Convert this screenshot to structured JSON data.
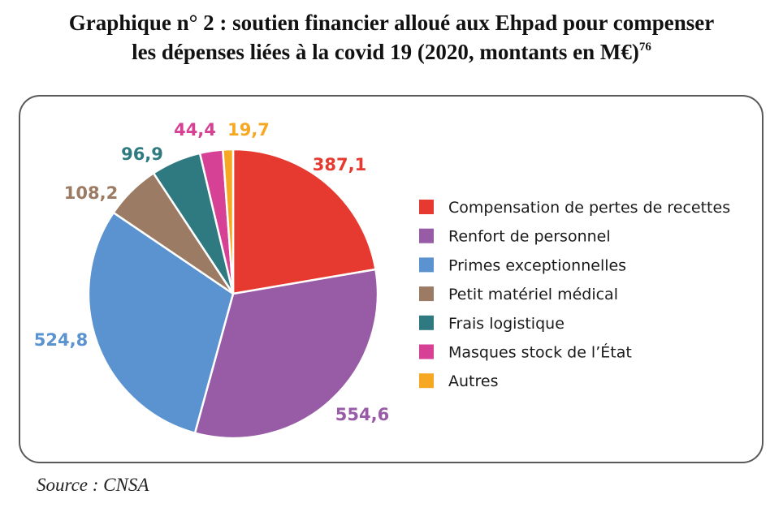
{
  "title": {
    "line1": "Graphique n° 2 : soutien financier alloué aux Ehpad pour compenser",
    "line2": "les dépenses liées à la covid 19 (2020, montants en M€)",
    "footnote": "76"
  },
  "source": "Source : CNSA",
  "chart_data": {
    "type": "pie",
    "title": "Graphique n° 2 : soutien financier alloué aux Ehpad pour compenser les dépenses liées à la covid 19 (2020, montants en M€)",
    "legend_position": "right",
    "slices": [
      {
        "label": "Compensation de pertes de recettes",
        "value": 387.1,
        "value_label": "387,1",
        "color": "#e63a30"
      },
      {
        "label": "Renfort de personnel",
        "value": 554.6,
        "value_label": "554,6",
        "color": "#985ba6"
      },
      {
        "label": "Primes exceptionnelles",
        "value": 524.8,
        "value_label": "524,8",
        "color": "#5a93d0"
      },
      {
        "label": "Petit matériel médical",
        "value": 108.2,
        "value_label": "108,2",
        "color": "#9b7b63"
      },
      {
        "label": "Frais logistique",
        "value": 96.9,
        "value_label": "96,9",
        "color": "#2e7a80"
      },
      {
        "label": "Masques stock de l’État",
        "value": 44.4,
        "value_label": "44,4",
        "color": "#d64196"
      },
      {
        "label": "Autres",
        "value": 19.7,
        "value_label": "19,7",
        "color": "#f7a823"
      }
    ]
  }
}
